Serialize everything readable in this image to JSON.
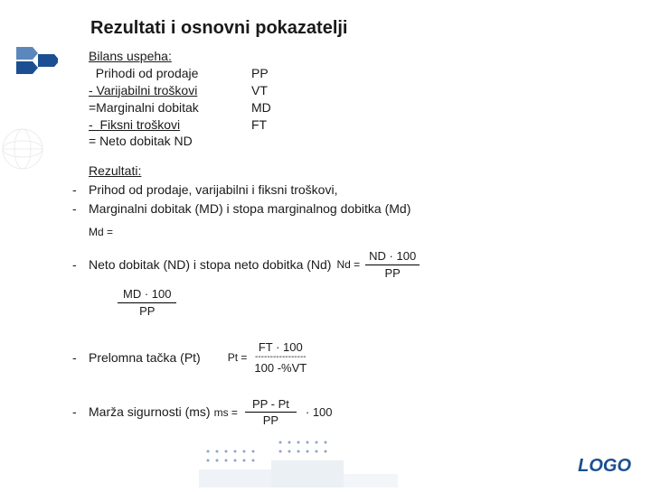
{
  "title": "Rezultati i osnovni pokazatelji",
  "bilans": {
    "header": "Bilans uspeha:",
    "rows": [
      {
        "left": "  Prihodi od prodaje",
        "right": "PP",
        "underline": false
      },
      {
        "left": "- Varijabilni troškovi",
        "right": "VT",
        "underline": true
      },
      {
        "left": "=Marginalni dobitak",
        "right": "MD",
        "underline": false
      },
      {
        "left": "-  Fiksni troškovi",
        "right": "FT",
        "underline": true
      },
      {
        "left": "= Neto dobitak ND",
        "right": "",
        "underline": false
      }
    ]
  },
  "rezultati": {
    "header": "Rezultati:",
    "line1": "Prihod od prodaje, varijabilni i fiksni troškovi,",
    "line2": "Marginalni dobitak (MD) i stopa marginalnog dobitka (Md)"
  },
  "md_label": "Md =",
  "neto": {
    "text": "Neto dobitak (ND) i stopa neto dobitka (Nd)",
    "nd_label": "Nd =",
    "nd_top": "ND · 100",
    "nd_bot": "PP"
  },
  "md_frac": {
    "top": "MD · 100",
    "bot": "PP"
  },
  "prelomna": {
    "text": "Prelomna tačka (Pt)",
    "pt_label": "Pt =",
    "pt_top": "FT · 100",
    "pt_dash": "-----------------",
    "pt_bot": "100 -%VT"
  },
  "marza": {
    "text": "Marža sigurnosti (ms)",
    "ms_label": "ms =",
    "ms_top": "PP - Pt",
    "ms_bot": "PP",
    "ms_mult": "· 100"
  },
  "logo": "LOGO",
  "colors": {
    "title": "#1a1a1a",
    "text": "#1a1a1a",
    "accent": "#1b4f91",
    "arrow_a": "#1b4f91",
    "arrow_b": "#5b87bd",
    "arrow_c": "#9db8d6",
    "bg": "#ffffff"
  }
}
